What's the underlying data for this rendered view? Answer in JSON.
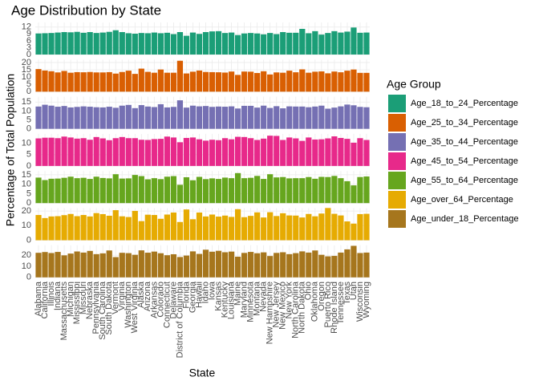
{
  "chart_data": {
    "type": "bar",
    "title": "Age Distribution by State",
    "x_label": "State",
    "y_label": "Percentage of Total Population",
    "legend_title": "Age Group",
    "legend": "right",
    "grid": true,
    "categories": [
      "Alabama",
      "California",
      "Illinois",
      "Indiana",
      "Massachusetts",
      "Michigan",
      "Mississippi",
      "Missouri",
      "Nebraska",
      "Pennsylvania",
      "South Carolina",
      "South Dakota",
      "Vermont",
      "Virginia",
      "Washington",
      "West Virginia",
      "Alaska",
      "Arizona",
      "Arkansas",
      "Colorado",
      "Connecticut",
      "Delaware",
      "District of Columbia",
      "Florida",
      "Georgia",
      "Hawaii",
      "Idaho",
      "Iowa",
      "Kansas",
      "Kentucky",
      "Louisiana",
      "Maine",
      "Maryland",
      "Minnesota",
      "Montana",
      "Nevada",
      "New Hampshire",
      "New Jersey",
      "New Mexico",
      "New York",
      "North Carolina",
      "North Dakota",
      "Ohio",
      "Oklahoma",
      "Oregon",
      "Puerto Rico",
      "Rhode Island",
      "Tennessee",
      "Texas",
      "Utah",
      "Wisconsin",
      "Wyoming"
    ],
    "series": [
      {
        "name": "Age_18_to_24_Percentage",
        "color": "#1b9e77",
        "ylim": [
          0,
          14
        ],
        "yticks": [
          0,
          3,
          6,
          9,
          12
        ],
        "values": [
          9.2,
          9.3,
          9.4,
          9.6,
          9.8,
          9.7,
          9.9,
          9.5,
          9.8,
          9.4,
          9.6,
          9.9,
          10.6,
          9.8,
          9.3,
          9.1,
          9.4,
          9.3,
          9.6,
          9.3,
          9.5,
          8.9,
          9.8,
          8.2,
          9.6,
          9.0,
          9.8,
          10.1,
          10.2,
          9.4,
          9.6,
          8.5,
          9.2,
          9.4,
          9.2,
          8.8,
          9.4,
          8.9,
          9.8,
          9.5,
          9.5,
          11.2,
          9.3,
          10.2,
          8.7,
          9.4,
          10.2,
          9.6,
          10.0,
          11.8,
          9.5,
          9.6
        ]
      },
      {
        "name": "Age_25_to_34_Percentage",
        "color": "#d95f02",
        "ylim": [
          0,
          22
        ],
        "yticks": [
          0,
          5,
          10,
          15,
          20
        ],
        "values": [
          15.5,
          14.5,
          14.0,
          13.2,
          14.2,
          13.0,
          13.4,
          13.3,
          13.5,
          13.2,
          13.2,
          13.4,
          12.4,
          13.5,
          14.4,
          12.2,
          15.8,
          13.6,
          13.0,
          15.2,
          13.0,
          13.0,
          21.2,
          12.5,
          13.7,
          14.5,
          13.5,
          13.4,
          13.3,
          13.1,
          13.8,
          11.5,
          13.8,
          13.7,
          12.8,
          14.0,
          11.8,
          13.2,
          13.0,
          14.4,
          13.3,
          15.3,
          13.0,
          13.7,
          13.9,
          12.6,
          13.8,
          13.3,
          14.4,
          15.2,
          12.9,
          12.9
        ]
      },
      {
        "name": "Age_35_to_44_Percentage",
        "color": "#7570b3",
        "ylim": [
          0,
          18
        ],
        "yticks": [
          0,
          5,
          10,
          15
        ],
        "values": [
          12.5,
          13.5,
          13.0,
          12.4,
          12.8,
          12.0,
          12.3,
          12.6,
          12.4,
          12.1,
          12.0,
          12.4,
          11.8,
          13.0,
          13.4,
          11.6,
          13.3,
          12.5,
          12.2,
          13.8,
          12.0,
          12.3,
          16.0,
          11.9,
          13.0,
          12.6,
          12.8,
          12.3,
          12.5,
          12.4,
          12.6,
          11.4,
          12.9,
          12.9,
          11.9,
          13.0,
          11.7,
          12.7,
          11.5,
          12.6,
          12.5,
          12.5,
          12.1,
          12.5,
          13.0,
          11.3,
          11.9,
          12.6,
          13.6,
          13.2,
          12.3,
          12.1
        ]
      },
      {
        "name": "Age_45_to_54_Percentage",
        "color": "#e7298a",
        "ylim": [
          0,
          14.2
        ],
        "yticks": [
          0,
          5,
          10
        ],
        "values": [
          12.2,
          12.5,
          12.5,
          12.3,
          13.0,
          12.6,
          12.1,
          12.3,
          11.6,
          12.8,
          12.2,
          11.4,
          12.3,
          12.8,
          12.3,
          12.3,
          11.6,
          11.5,
          11.9,
          12.0,
          13.0,
          12.6,
          10.5,
          12.4,
          12.6,
          11.8,
          11.2,
          11.6,
          11.4,
          12.3,
          11.8,
          12.9,
          12.8,
          12.3,
          11.5,
          12.1,
          13.4,
          13.3,
          11.5,
          12.6,
          12.2,
          11.1,
          12.6,
          11.7,
          11.8,
          12.2,
          13.1,
          12.4,
          12.0,
          10.3,
          12.3,
          11.5
        ]
      },
      {
        "name": "Age_55_to_64_Percentage",
        "color": "#66a61e",
        "ylim": [
          0,
          17
        ],
        "yticks": [
          0,
          5,
          10,
          15
        ],
        "values": [
          13.5,
          12.2,
          12.9,
          13.0,
          13.4,
          14.0,
          13.2,
          13.4,
          12.8,
          14.0,
          13.3,
          13.1,
          15.3,
          13.0,
          13.1,
          14.9,
          14.3,
          12.6,
          13.2,
          12.7,
          14.0,
          14.3,
          9.7,
          13.7,
          12.1,
          13.9,
          12.7,
          13.1,
          12.8,
          13.5,
          13.2,
          15.9,
          13.2,
          13.4,
          14.4,
          12.8,
          15.3,
          13.6,
          13.8,
          13.1,
          13.2,
          13.2,
          13.8,
          12.9,
          13.9,
          13.8,
          14.4,
          13.2,
          11.6,
          9.4,
          13.8,
          14.1
        ]
      },
      {
        "name": "Age_over_64_Percentage",
        "color": "#e6ab02",
        "ylim": [
          0,
          22
        ],
        "yticks": [
          0,
          10,
          20
        ],
        "values": [
          17.3,
          15.2,
          16.3,
          16.5,
          17.2,
          18.0,
          16.5,
          17.3,
          16.3,
          18.6,
          17.9,
          16.8,
          20.6,
          16.4,
          15.9,
          20.1,
          13.1,
          17.5,
          17.3,
          14.7,
          17.6,
          19.0,
          12.5,
          21.1,
          14.4,
          19.0,
          16.3,
          17.6,
          16.2,
          16.9,
          16.0,
          21.3,
          15.8,
          16.7,
          19.1,
          15.6,
          19.2,
          16.6,
          18.5,
          17.0,
          16.9,
          15.6,
          18.0,
          16.4,
          18.3,
          22.1,
          18.1,
          17.0,
          12.9,
          11.4,
          17.9,
          18.1
        ]
      },
      {
        "name": "Age_under_18_Percentage",
        "color": "#a6761d",
        "ylim": [
          0,
          29
        ],
        "yticks": [
          0,
          10,
          20
        ],
        "values": [
          22.2,
          22.9,
          22.0,
          23.0,
          19.9,
          21.5,
          23.4,
          22.4,
          23.9,
          21.0,
          21.7,
          24.3,
          18.3,
          22.2,
          21.9,
          20.4,
          24.4,
          22.3,
          23.3,
          21.8,
          20.0,
          20.9,
          18.4,
          19.7,
          23.5,
          21.2,
          25.0,
          23.2,
          24.0,
          22.7,
          23.3,
          18.7,
          22.1,
          23.0,
          21.8,
          22.6,
          19.3,
          22.1,
          22.7,
          21.0,
          21.9,
          23.5,
          22.4,
          24.3,
          20.4,
          19.0,
          19.4,
          22.4,
          25.3,
          28.5,
          22.0,
          22.4
        ]
      }
    ]
  }
}
